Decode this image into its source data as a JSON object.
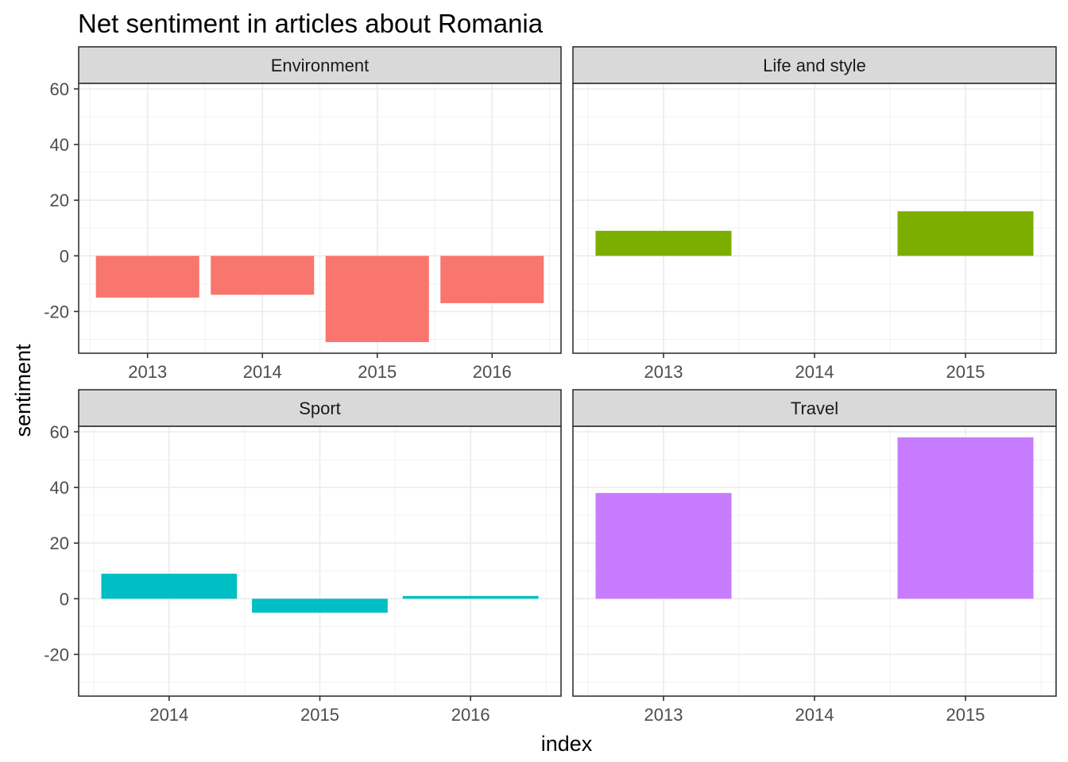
{
  "chart_data": {
    "type": "bar",
    "title": "Net sentiment in articles about Romania",
    "xlabel": "index",
    "ylabel": "sentiment",
    "ylim": [
      -35,
      62
    ],
    "y_ticks": [
      -20,
      0,
      20,
      40,
      60
    ],
    "shared_y_axis": true,
    "grid": true,
    "facets": [
      {
        "name": "Environment",
        "color": "#F8766D",
        "categories": [
          "2013",
          "2014",
          "2015",
          "2016"
        ],
        "values": [
          -15,
          -14,
          -31,
          -17
        ]
      },
      {
        "name": "Life and style",
        "color": "#7CAE00",
        "categories": [
          "2013",
          "2014",
          "2015"
        ],
        "values": [
          9,
          null,
          16
        ]
      },
      {
        "name": "Sport",
        "color": "#00BFC4",
        "categories": [
          "2014",
          "2015",
          "2016"
        ],
        "values": [
          9,
          -5,
          1
        ]
      },
      {
        "name": "Travel",
        "color": "#C77CFF",
        "categories": [
          "2013",
          "2014",
          "2015"
        ],
        "values": [
          38,
          null,
          58
        ]
      }
    ]
  }
}
